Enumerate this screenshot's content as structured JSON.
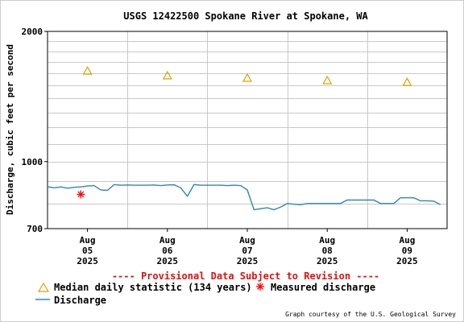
{
  "chart_data": {
    "type": "line",
    "title": "USGS 12422500 Spokane River at Spokane, WA",
    "ylabel": "Discharge, cubic feet per second",
    "xlabel": "",
    "yscale": "log",
    "ylim": [
      700,
      2000
    ],
    "y_tick_labels": [
      "2000",
      "1000",
      "700"
    ],
    "x_ticks": [
      {
        "month": "Aug",
        "day": "05",
        "year": "2025"
      },
      {
        "month": "Aug",
        "day": "06",
        "year": "2025"
      },
      {
        "month": "Aug",
        "day": "07",
        "year": "2025"
      },
      {
        "month": "Aug",
        "day": "08",
        "year": "2025"
      },
      {
        "month": "Aug",
        "day": "09",
        "year": "2025"
      }
    ],
    "xlim": [
      "2025-08-04 12:00",
      "2025-08-09 12:00"
    ],
    "grid": true,
    "series": [
      {
        "name": "Discharge",
        "color": "#2e86b8",
        "x": [
          "2025-08-04 12:00",
          "2025-08-04 14:00",
          "2025-08-04 16:00",
          "2025-08-04 18:00",
          "2025-08-04 20:00",
          "2025-08-04 22:00",
          "2025-08-05 00:00",
          "2025-08-05 02:00",
          "2025-08-05 04:00",
          "2025-08-05 06:00",
          "2025-08-05 08:00",
          "2025-08-05 10:00",
          "2025-08-05 12:00",
          "2025-08-05 14:00",
          "2025-08-05 16:00",
          "2025-08-05 18:00",
          "2025-08-05 20:00",
          "2025-08-05 22:00",
          "2025-08-06 00:00",
          "2025-08-06 02:00",
          "2025-08-06 04:00",
          "2025-08-06 06:00",
          "2025-08-06 08:00",
          "2025-08-06 10:00",
          "2025-08-06 12:00",
          "2025-08-06 14:00",
          "2025-08-06 16:00",
          "2025-08-06 18:00",
          "2025-08-06 20:00",
          "2025-08-06 22:00",
          "2025-08-07 00:00",
          "2025-08-07 02:00",
          "2025-08-07 04:00",
          "2025-08-07 06:00",
          "2025-08-07 08:00",
          "2025-08-07 10:00",
          "2025-08-07 12:00",
          "2025-08-07 14:00",
          "2025-08-07 16:00",
          "2025-08-07 18:00",
          "2025-08-07 20:00",
          "2025-08-07 22:00",
          "2025-08-08 00:00",
          "2025-08-08 02:00",
          "2025-08-08 04:00",
          "2025-08-08 06:00",
          "2025-08-08 08:00",
          "2025-08-08 10:00",
          "2025-08-08 12:00",
          "2025-08-08 14:00",
          "2025-08-08 16:00",
          "2025-08-08 18:00",
          "2025-08-08 20:00",
          "2025-08-08 22:00",
          "2025-08-09 00:00",
          "2025-08-09 02:00",
          "2025-08-09 04:00",
          "2025-08-09 06:00",
          "2025-08-09 08:00",
          "2025-08-09 10:00"
        ],
        "y": [
          875,
          870,
          874,
          868,
          872,
          874,
          878,
          880,
          860,
          858,
          885,
          882,
          883,
          882,
          882,
          882,
          883,
          880,
          883,
          884,
          870,
          832,
          885,
          882,
          882,
          882,
          882,
          880,
          882,
          880,
          860,
          774,
          778,
          782,
          774,
          785,
          800,
          797,
          795,
          800,
          800,
          800,
          800,
          800,
          800,
          815,
          815,
          815,
          815,
          815,
          800,
          800,
          800,
          825,
          825,
          825,
          812,
          812,
          810,
          795
        ]
      },
      {
        "name": "Median daily statistic (134 years)",
        "color": "#e0a000",
        "marker": "triangle",
        "x": [
          "2025-08-05 00:00",
          "2025-08-06 00:00",
          "2025-08-07 00:00",
          "2025-08-08 00:00",
          "2025-08-09 00:00"
        ],
        "y": [
          1620,
          1580,
          1560,
          1540,
          1525
        ]
      },
      {
        "name": "Measured discharge",
        "color": "#ff0000",
        "marker": "asterisk",
        "x": [
          "2025-08-04 22:00"
        ],
        "y": [
          840
        ]
      }
    ]
  },
  "provisional_note": "---- Provisional Data Subject to Revision ----",
  "legend": {
    "median_label": "Median daily statistic (134 years)",
    "measured_label": "Measured discharge",
    "discharge_label": "Discharge"
  },
  "credit": "Graph courtesy of the U.S. Geological Survey"
}
